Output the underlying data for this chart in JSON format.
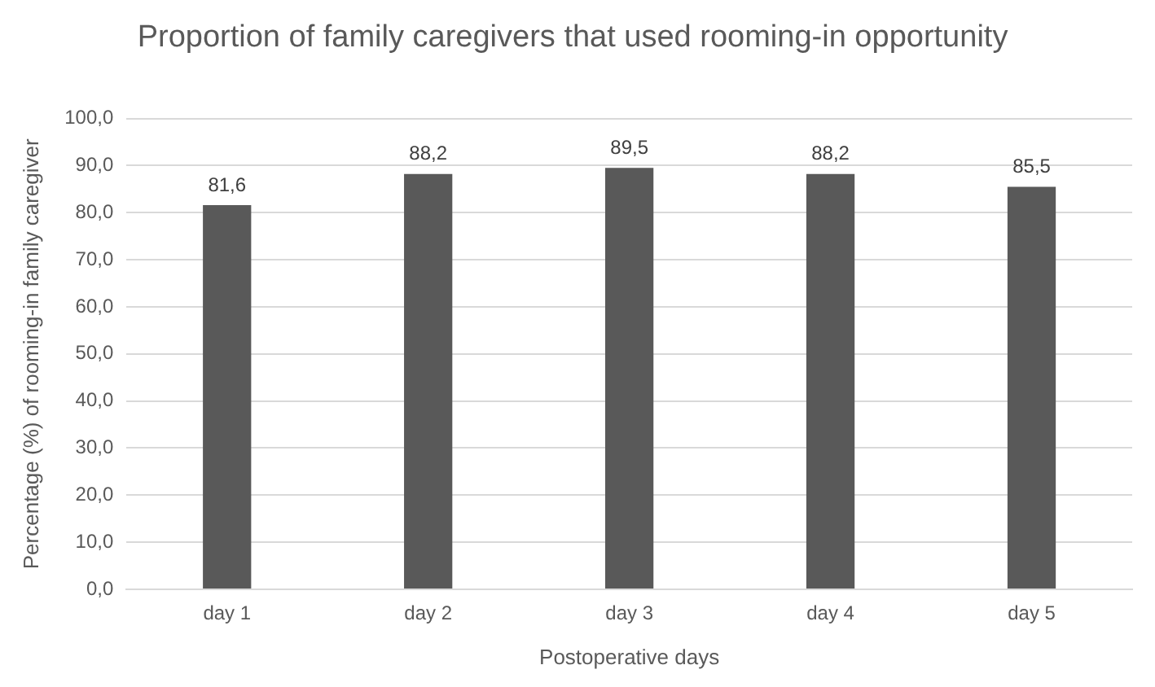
{
  "chart_data": {
    "type": "bar",
    "title": "Proportion of family caregivers that used rooming-in opportunity",
    "xlabel": "Postoperative days",
    "ylabel": "Percentage (%) of rooming-in family caregiver",
    "categories": [
      "day 1",
      "day 2",
      "day 3",
      "day 4",
      "day 5"
    ],
    "values": [
      81.6,
      88.2,
      89.5,
      88.2,
      85.5
    ],
    "value_labels": [
      "81,6",
      "88,2",
      "89,5",
      "88,2",
      "85,5"
    ],
    "color": "#595959",
    "ylim": [
      0,
      100
    ],
    "yticks": [
      {
        "value": 0,
        "label": "0,0"
      },
      {
        "value": 10,
        "label": "10,0"
      },
      {
        "value": 20,
        "label": "20,0"
      },
      {
        "value": 30,
        "label": "30,0"
      },
      {
        "value": 40,
        "label": "40,0"
      },
      {
        "value": 50,
        "label": "50,0"
      },
      {
        "value": 60,
        "label": "60,0"
      },
      {
        "value": 70,
        "label": "70,0"
      },
      {
        "value": 80,
        "label": "80,0"
      },
      {
        "value": 90,
        "label": "90,0"
      },
      {
        "value": 100,
        "label": "100,0"
      }
    ],
    "grid": "y",
    "legend": false
  }
}
